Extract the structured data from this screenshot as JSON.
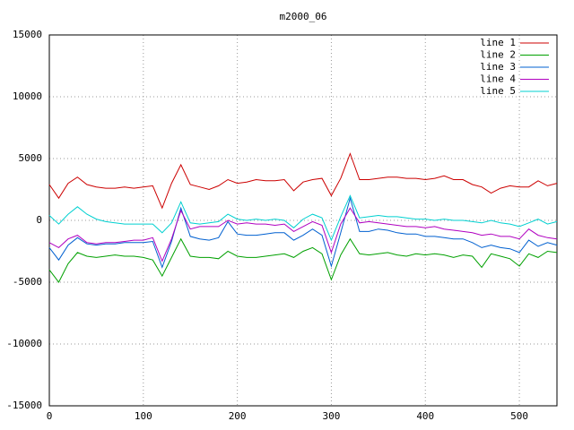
{
  "chart_data": {
    "type": "line",
    "title": "m2000_06",
    "x": [
      0,
      10,
      20,
      30,
      40,
      50,
      60,
      70,
      80,
      90,
      100,
      110,
      120,
      130,
      140,
      150,
      160,
      170,
      180,
      190,
      200,
      210,
      220,
      230,
      240,
      250,
      260,
      270,
      280,
      290,
      300,
      310,
      320,
      330,
      340,
      350,
      360,
      370,
      380,
      390,
      400,
      410,
      420,
      430,
      440,
      450,
      460,
      470,
      480,
      490,
      500,
      510,
      520,
      530,
      540
    ],
    "series": [
      {
        "name": "line 1",
        "color": "#cc0000",
        "values": [
          2900,
          1800,
          3000,
          3500,
          2900,
          2700,
          2600,
          2600,
          2700,
          2600,
          2700,
          2800,
          1000,
          3000,
          4500,
          2900,
          2700,
          2500,
          2800,
          3300,
          3000,
          3100,
          3300,
          3200,
          3200,
          3300,
          2400,
          3100,
          3300,
          3400,
          2000,
          3400,
          5400,
          3300,
          3300,
          3400,
          3500,
          3500,
          3400,
          3400,
          3300,
          3400,
          3600,
          3300,
          3300,
          2900,
          2700,
          2200,
          2600,
          2800,
          2700,
          2700,
          3200,
          2800,
          3000
        ]
      },
      {
        "name": "line 2",
        "color": "#00a000",
        "values": [
          -4000,
          -5000,
          -3500,
          -2600,
          -2900,
          -3000,
          -2900,
          -2800,
          -2900,
          -2900,
          -3000,
          -3200,
          -4500,
          -3000,
          -1500,
          -2900,
          -3000,
          -3000,
          -3100,
          -2500,
          -2900,
          -3000,
          -3000,
          -2900,
          -2800,
          -2700,
          -3000,
          -2500,
          -2200,
          -2700,
          -4800,
          -2800,
          -1500,
          -2700,
          -2800,
          -2700,
          -2600,
          -2800,
          -2900,
          -2700,
          -2800,
          -2700,
          -2800,
          -3000,
          -2800,
          -2900,
          -3800,
          -2700,
          -2900,
          -3100,
          -3700,
          -2700,
          -3000,
          -2500,
          -2600
        ]
      },
      {
        "name": "line 3",
        "color": "#0060d0",
        "values": [
          -2200,
          -3200,
          -2000,
          -1400,
          -1900,
          -2000,
          -1900,
          -1900,
          -1800,
          -1800,
          -1800,
          -1700,
          -3800,
          -1700,
          1000,
          -1300,
          -1500,
          -1600,
          -1400,
          -100,
          -1100,
          -1200,
          -1200,
          -1100,
          -1000,
          -1000,
          -1600,
          -1200,
          -700,
          -1200,
          -3700,
          -1000,
          1800,
          -900,
          -900,
          -700,
          -800,
          -1000,
          -1100,
          -1100,
          -1300,
          -1300,
          -1400,
          -1500,
          -1500,
          -1800,
          -2200,
          -2000,
          -2200,
          -2300,
          -2600,
          -1600,
          -2100,
          -1800,
          -2000
        ]
      },
      {
        "name": "line 4",
        "color": "#b000c0",
        "values": [
          -1800,
          -2200,
          -1500,
          -1200,
          -1800,
          -1900,
          -1800,
          -1800,
          -1700,
          -1600,
          -1600,
          -1400,
          -3300,
          -1500,
          800,
          -700,
          -500,
          -500,
          -500,
          0,
          -300,
          -200,
          -300,
          -300,
          -400,
          -300,
          -900,
          -500,
          -100,
          -400,
          -2600,
          -300,
          1000,
          -200,
          -100,
          -200,
          -300,
          -400,
          -500,
          -500,
          -600,
          -500,
          -700,
          -800,
          -900,
          -1000,
          -1200,
          -1100,
          -1300,
          -1300,
          -1500,
          -700,
          -1200,
          -1400,
          -1500
        ]
      },
      {
        "name": "line 5",
        "color": "#00d0d0",
        "values": [
          400,
          -300,
          500,
          1100,
          500,
          100,
          -100,
          -200,
          -300,
          -300,
          -300,
          -300,
          -1000,
          -200,
          1500,
          -200,
          -300,
          -200,
          -100,
          500,
          100,
          0,
          100,
          0,
          100,
          0,
          -600,
          100,
          500,
          200,
          -1600,
          300,
          2000,
          200,
          300,
          400,
          300,
          300,
          200,
          100,
          100,
          0,
          100,
          0,
          0,
          -100,
          -200,
          0,
          -200,
          -300,
          -500,
          -200,
          100,
          -300,
          -100
        ]
      }
    ],
    "xlim": [
      0,
      540
    ],
    "xticks": [
      0,
      100,
      200,
      300,
      400,
      500
    ],
    "ylim": [
      -15000,
      15000
    ],
    "yticks": [
      -15000,
      -10000,
      -5000,
      0,
      5000,
      10000,
      15000
    ],
    "grid": true,
    "legend": "top-right"
  }
}
